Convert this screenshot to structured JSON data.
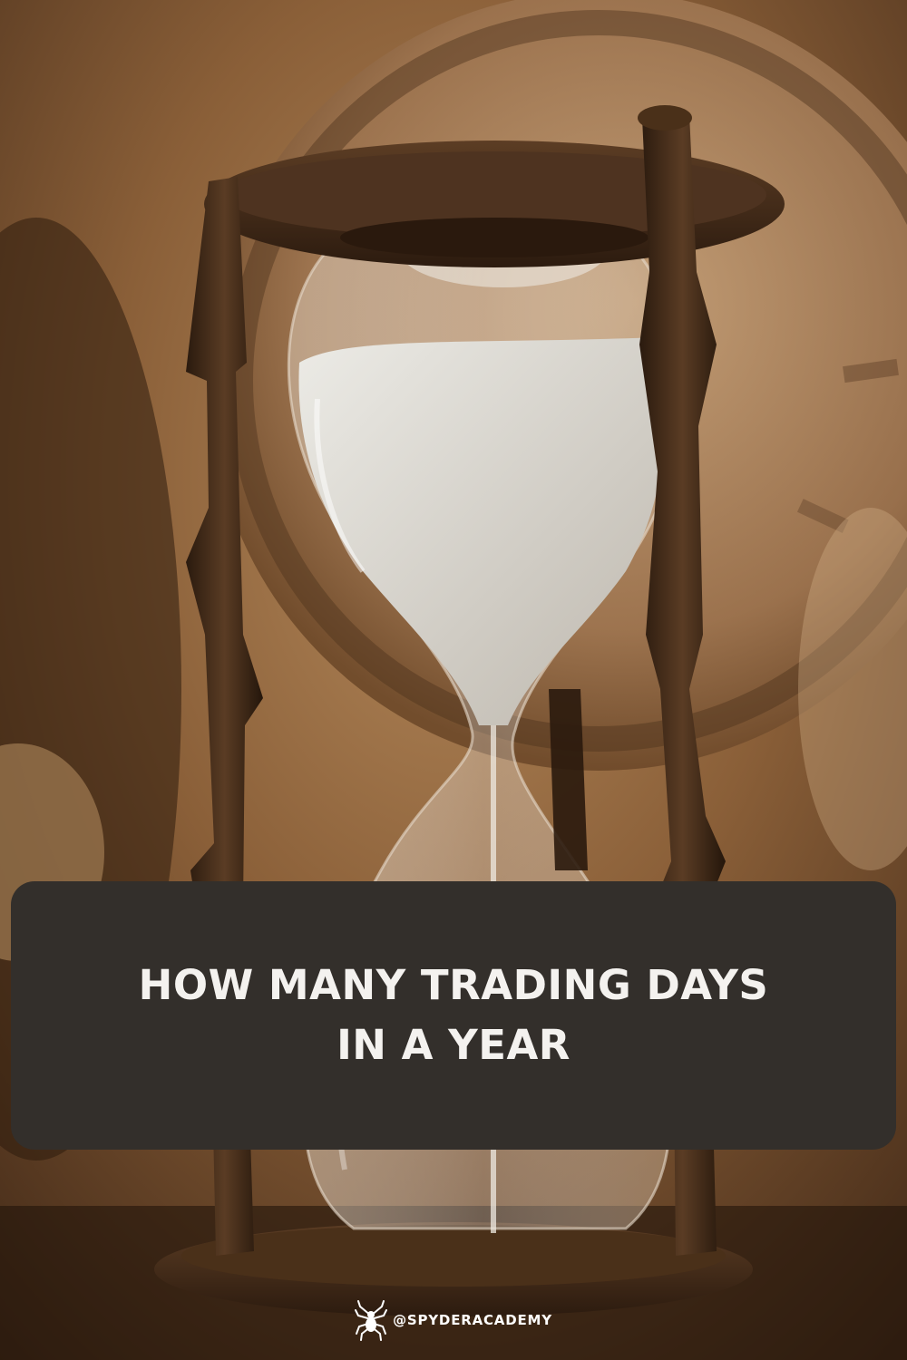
{
  "title": {
    "line1": "HOW MANY TRADING DAYS",
    "line2": "IN A YEAR"
  },
  "footer": {
    "handle": "@SPYDERACADEMY",
    "logo_icon": "spider-icon"
  },
  "photo": {
    "subject": "hourglass-icon"
  },
  "colors": {
    "panel": "#332f2b",
    "title_text": "#f4f2ef",
    "sepia_background": "#6e4a2a",
    "frame_wood": "#3b2717",
    "sand": "#dddbd5"
  }
}
